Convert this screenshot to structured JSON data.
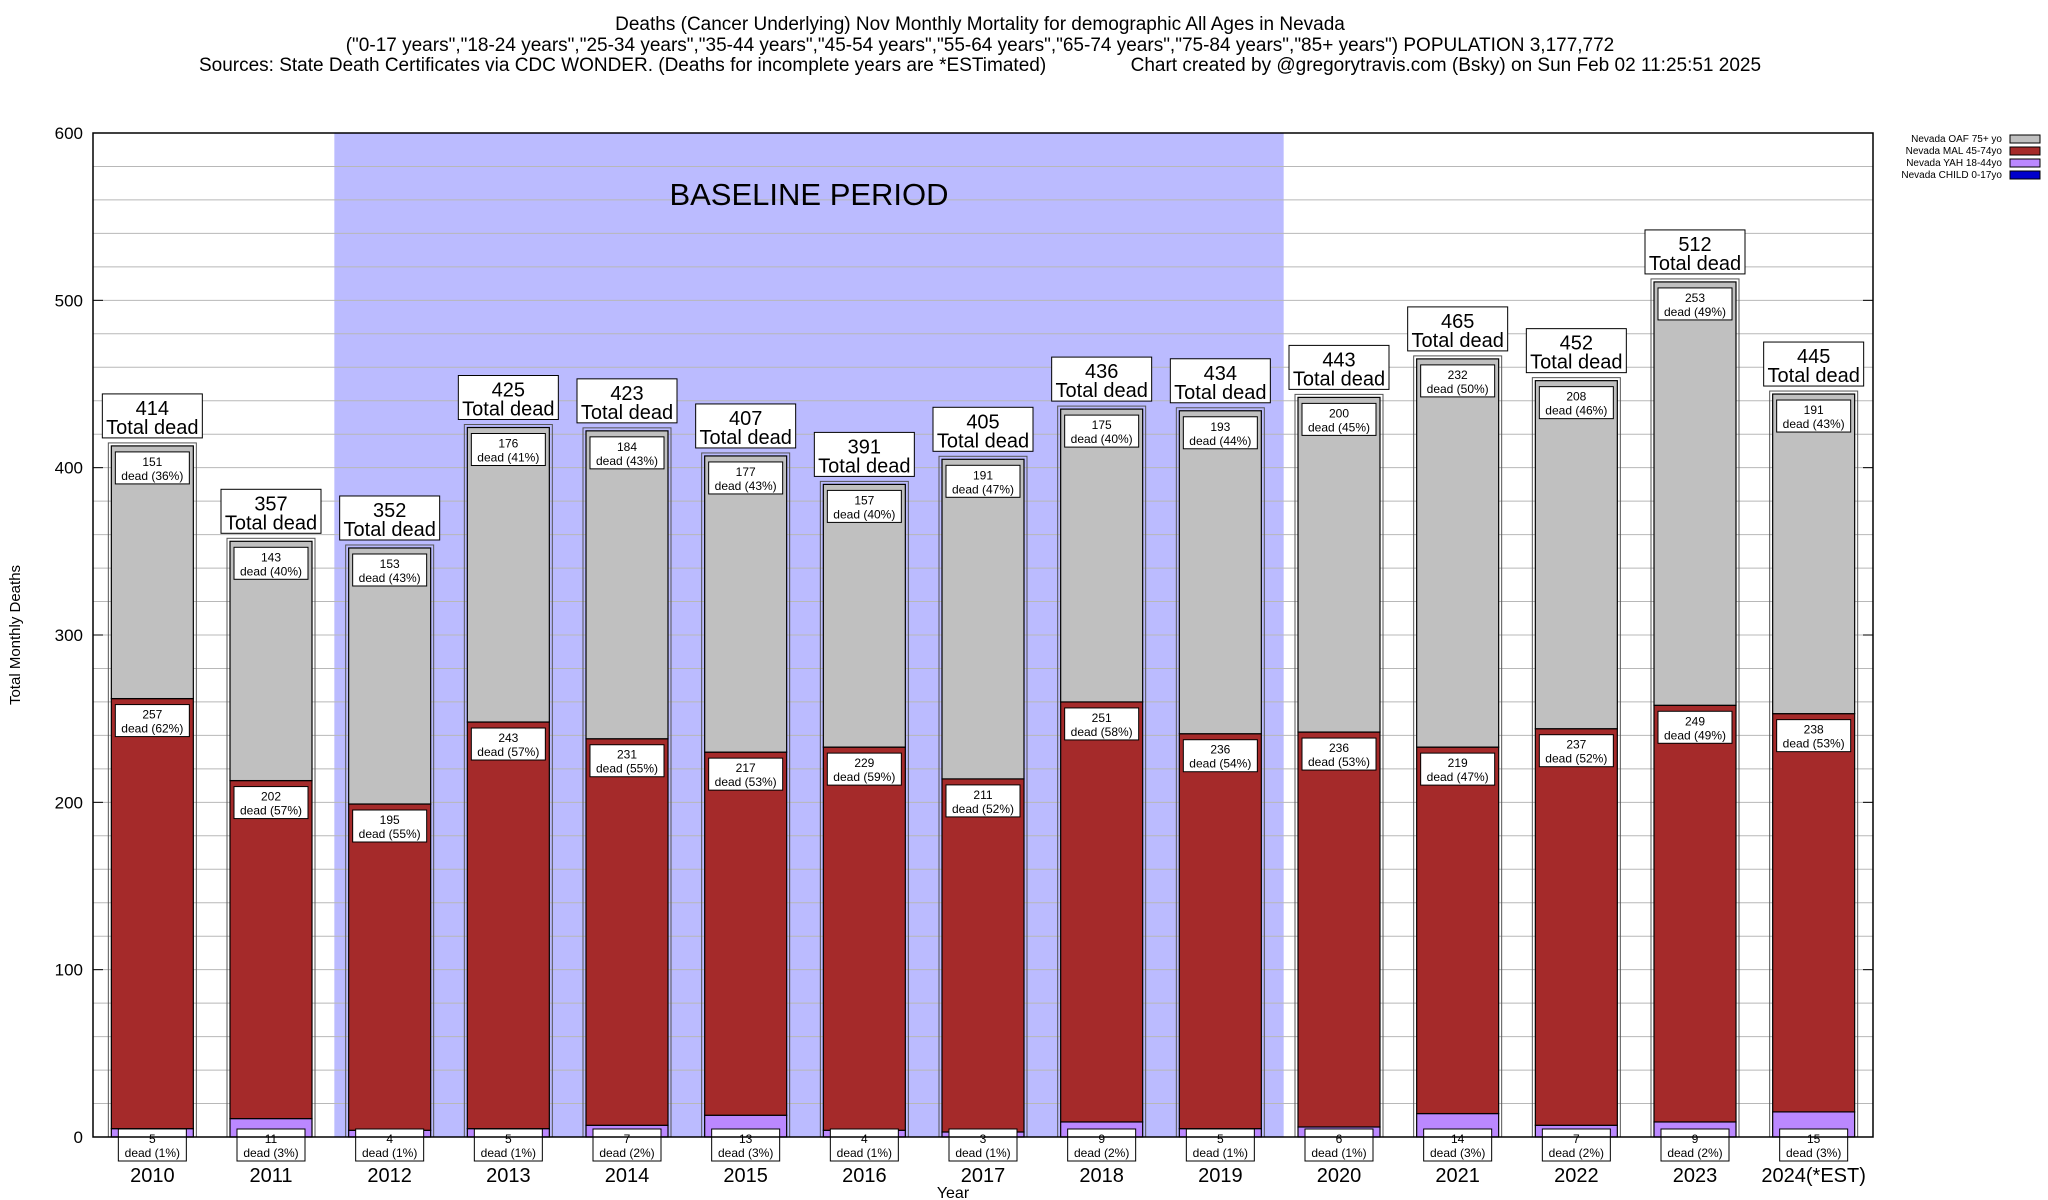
{
  "title_lines": [
    "Deaths (Cancer Underlying) Nov Monthly Mortality for demographic All Ages in Nevada",
    "(\"0-17 years\",\"18-24 years\",\"25-34 years\",\"35-44 years\",\"45-54 years\",\"55-64 years\",\"65-74 years\",\"75-84 years\",\"85+ years\") POPULATION 3,177,772",
    "Sources: State Death Certificates via CDC WONDER. (Deaths for incomplete years are *ESTimated)                Chart created by @gregorytravis.com (Bsky) on Sun Feb 02 11:25:51 2025"
  ],
  "chart_data": {
    "type": "bar",
    "stacked": true,
    "xlabel": "Year",
    "ylabel": "Total Monthly Deaths",
    "ylim": [
      0,
      600
    ],
    "yticks": [
      0,
      100,
      200,
      300,
      400,
      500,
      600
    ],
    "grid": true,
    "legend_position": "top-right",
    "categories": [
      "2010",
      "2011",
      "2012",
      "2013",
      "2014",
      "2015",
      "2016",
      "2017",
      "2018",
      "2019",
      "2020",
      "2021",
      "2022",
      "2023",
      "2024(*EST)"
    ],
    "series": [
      {
        "name": "Nevada CHILD 0-17yo",
        "color": "#0000cc",
        "values": [
          0,
          0,
          0,
          0,
          0,
          0,
          0,
          0,
          0,
          0,
          0,
          0,
          0,
          0,
          0
        ]
      },
      {
        "name": "Nevada YAH 18-44yo",
        "color": "#bb88ff",
        "values": [
          5,
          11,
          4,
          5,
          7,
          13,
          4,
          3,
          9,
          5,
          6,
          14,
          7,
          9,
          15
        ],
        "labels": [
          "5 dead (1%)",
          "11 dead (3%)",
          "4 dead (1%)",
          "5 dead (1%)",
          "7 dead (2%)",
          "13 dead (3%)",
          "4 dead (1%)",
          "3 dead (1%)",
          "9 dead (2%)",
          "5 dead (1%)",
          "6 dead (1%)",
          "14 dead (3%)",
          "7 dead (2%)",
          "9 dead (2%)",
          "15 dead (3%)"
        ]
      },
      {
        "name": "Nevada MAL 45-74yo",
        "color": "#a52a2a",
        "values": [
          257,
          202,
          195,
          243,
          231,
          217,
          229,
          211,
          251,
          236,
          236,
          219,
          237,
          249,
          238
        ],
        "labels": [
          "257 dead (62%)",
          "202 dead (57%)",
          "195 dead (55%)",
          "243 dead (57%)",
          "231 dead (55%)",
          "217 dead (53%)",
          "229 dead (59%)",
          "211 dead (52%)",
          "251 dead (58%)",
          "236 dead (54%)",
          "236 dead (53%)",
          "219 dead (47%)",
          "237 dead (52%)",
          "249 dead (49%)",
          "238 dead (53%)"
        ]
      },
      {
        "name": "Nevada OAF 75+ yo",
        "color": "#c0c0c0",
        "values": [
          151,
          143,
          153,
          176,
          184,
          177,
          157,
          191,
          175,
          193,
          200,
          232,
          208,
          253,
          191
        ],
        "labels": [
          "151 dead (36%)",
          "143 dead (40%)",
          "153 dead (43%)",
          "176 dead (41%)",
          "184 dead (43%)",
          "177 dead (43%)",
          "157 dead (40%)",
          "191 dead (47%)",
          "175 dead (40%)",
          "193 dead (44%)",
          "200 dead (45%)",
          "232 dead (50%)",
          "208 dead (46%)",
          "253 dead (49%)",
          "191 dead (43%)"
        ]
      }
    ],
    "totals": [
      414,
      357,
      352,
      425,
      423,
      407,
      391,
      405,
      436,
      434,
      443,
      465,
      452,
      512,
      445
    ],
    "total_suffix": "Total dead",
    "annotation": "BASELINE PERIOD",
    "baseline_categories": [
      "2012",
      "2019"
    ],
    "baseline_color": "#bbbbff"
  }
}
